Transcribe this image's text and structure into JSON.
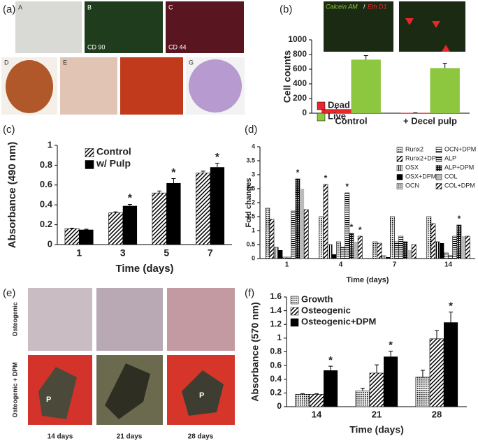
{
  "panels": {
    "a": {
      "label": "(a)",
      "images": [
        "A",
        "B",
        "CD 90",
        "C",
        "CD 44",
        "D",
        "E",
        "G"
      ]
    },
    "b": {
      "stain_live": "Calcein AM",
      "stain_sep": "/",
      "stain_dead": "Eth D1"
    },
    "e": {
      "label": "(e)",
      "rows": [
        "Osteogenic",
        "Osteogenic + DPM"
      ],
      "columns": [
        "14 days",
        "21 days",
        "28 days"
      ],
      "marker": "P"
    }
  },
  "chart_data": [
    {
      "type": "bar",
      "panel": "(b)",
      "y_label": "Cell counts",
      "categories": [
        "Control",
        "+ Decel pulp"
      ],
      "series": [
        {
          "name": "Dead",
          "color": "#e8262b",
          "pattern": "solid",
          "values": [
            55,
            5
          ],
          "errors": [
            25,
            0
          ]
        },
        {
          "name": "Live",
          "color": "#8dc63f",
          "pattern": "solid",
          "values": [
            730,
            615
          ],
          "errors": [
            55,
            65
          ]
        }
      ],
      "ylim": [
        0,
        1000
      ],
      "yticks": [
        0,
        200,
        400,
        600,
        800,
        1000
      ],
      "legend": "upper left"
    },
    {
      "type": "bar",
      "panel": "(c)",
      "y_label": "Absorbance (490 nm)",
      "x_label": "Time (days)",
      "categories": [
        "1",
        "3",
        "5",
        "7"
      ],
      "series": [
        {
          "name": "Control",
          "color": "#777777",
          "pattern": "diagonal",
          "values": [
            0.16,
            0.32,
            0.52,
            0.72
          ],
          "errors": [
            0.005,
            0.01,
            0.02,
            0.02
          ]
        },
        {
          "name": "w/ Pulp",
          "color": "#000000",
          "pattern": "solid",
          "values": [
            0.15,
            0.39,
            0.62,
            0.78
          ],
          "errors": [
            0.005,
            0.015,
            0.045,
            0.04
          ]
        }
      ],
      "annotations": [
        {
          "text": "*",
          "series": 1,
          "category": 1
        },
        {
          "text": "*",
          "series": 1,
          "category": 2
        },
        {
          "text": "*",
          "series": 1,
          "category": 3
        }
      ],
      "ylim": [
        0,
        1
      ],
      "yticks": [
        0,
        0.2,
        0.4,
        0.6,
        0.8,
        1
      ],
      "legend": "upper left"
    },
    {
      "type": "bar",
      "panel": "(d)",
      "y_label": "Fold changes",
      "x_label": "Time (days)",
      "categories": [
        "1",
        "4",
        "7",
        "14"
      ],
      "series": [
        {
          "name": "Runx2",
          "color": "#888888",
          "pattern": "dots",
          "values": [
            1.8,
            1.5,
            0.6,
            1.5
          ]
        },
        {
          "name": "Runx2+DPM",
          "color": "#222222",
          "pattern": "diagonal",
          "values": [
            1.4,
            2.65,
            0.55,
            1.25
          ]
        },
        {
          "name": "OSX",
          "color": "#999999",
          "pattern": "vertical",
          "values": [
            0.4,
            0.5,
            0.1,
            0.6
          ]
        },
        {
          "name": "OSX+DPM",
          "color": "#000000",
          "pattern": "solid",
          "values": [
            0.3,
            0.15,
            0.05,
            0.55
          ]
        },
        {
          "name": "OCN",
          "color": "#aaaaaa",
          "pattern": "dots",
          "values": [
            0.05,
            0.6,
            1.5,
            0.2
          ]
        },
        {
          "name": "OCN+DPM",
          "color": "#333333",
          "pattern": "horizontal",
          "values": [
            0.05,
            0.4,
            0.6,
            0.1
          ]
        },
        {
          "name": "ALP",
          "color": "#888888",
          "pattern": "horizontal",
          "values": [
            1.7,
            2.35,
            0.8,
            0.8
          ]
        },
        {
          "name": "ALP+DPM",
          "color": "#111111",
          "pattern": "grid",
          "values": [
            2.85,
            0.9,
            0.6,
            1.2
          ]
        },
        {
          "name": "COL",
          "color": "#bbbbbb",
          "pattern": "solid",
          "values": [
            2.5,
            0.6,
            0.3,
            0.8
          ]
        },
        {
          "name": "COL+DPM",
          "color": "#333333",
          "pattern": "diagonal",
          "values": [
            1.75,
            0.8,
            0.5,
            0.8
          ]
        }
      ],
      "annotations": [
        {
          "text": "*",
          "series": 7,
          "category": 0
        },
        {
          "text": "*",
          "series": 1,
          "category": 1
        },
        {
          "text": "*",
          "series": 6,
          "category": 1
        },
        {
          "text": "*",
          "series": 7,
          "category": 1
        },
        {
          "text": "*",
          "series": 9,
          "category": 1
        },
        {
          "text": "*",
          "series": 7,
          "category": 3
        }
      ],
      "ylim": [
        0,
        4
      ],
      "yticks": [
        0,
        0.5,
        1,
        1.5,
        2,
        2.5,
        3,
        3.5,
        4
      ],
      "legend": "upper right"
    },
    {
      "type": "bar",
      "panel": "(f)",
      "y_label": "Absorbance (570 nm)",
      "x_label": "Time (days)",
      "categories": [
        "14",
        "21",
        "28"
      ],
      "series": [
        {
          "name": "Growth",
          "color": "#888888",
          "pattern": "dots",
          "values": [
            0.18,
            0.23,
            0.43
          ],
          "errors": [
            0.01,
            0.04,
            0.1
          ]
        },
        {
          "name": "Osteogenic",
          "color": "#333333",
          "pattern": "diagonal",
          "values": [
            0.18,
            0.49,
            0.99
          ],
          "errors": [
            0.01,
            0.12,
            0.12
          ]
        },
        {
          "name": "Osteogenic+DPM",
          "color": "#000000",
          "pattern": "solid",
          "values": [
            0.53,
            0.73,
            1.23
          ],
          "errors": [
            0.06,
            0.08,
            0.15
          ]
        }
      ],
      "annotations": [
        {
          "text": "*",
          "series": 2,
          "category": 0
        },
        {
          "text": "*",
          "series": 2,
          "category": 1
        },
        {
          "text": "*",
          "series": 2,
          "category": 2
        }
      ],
      "ylim": [
        0,
        1.6
      ],
      "yticks": [
        0,
        0.2,
        0.4,
        0.6,
        0.8,
        1,
        1.2,
        1.4,
        1.6
      ],
      "legend": "upper left"
    }
  ]
}
